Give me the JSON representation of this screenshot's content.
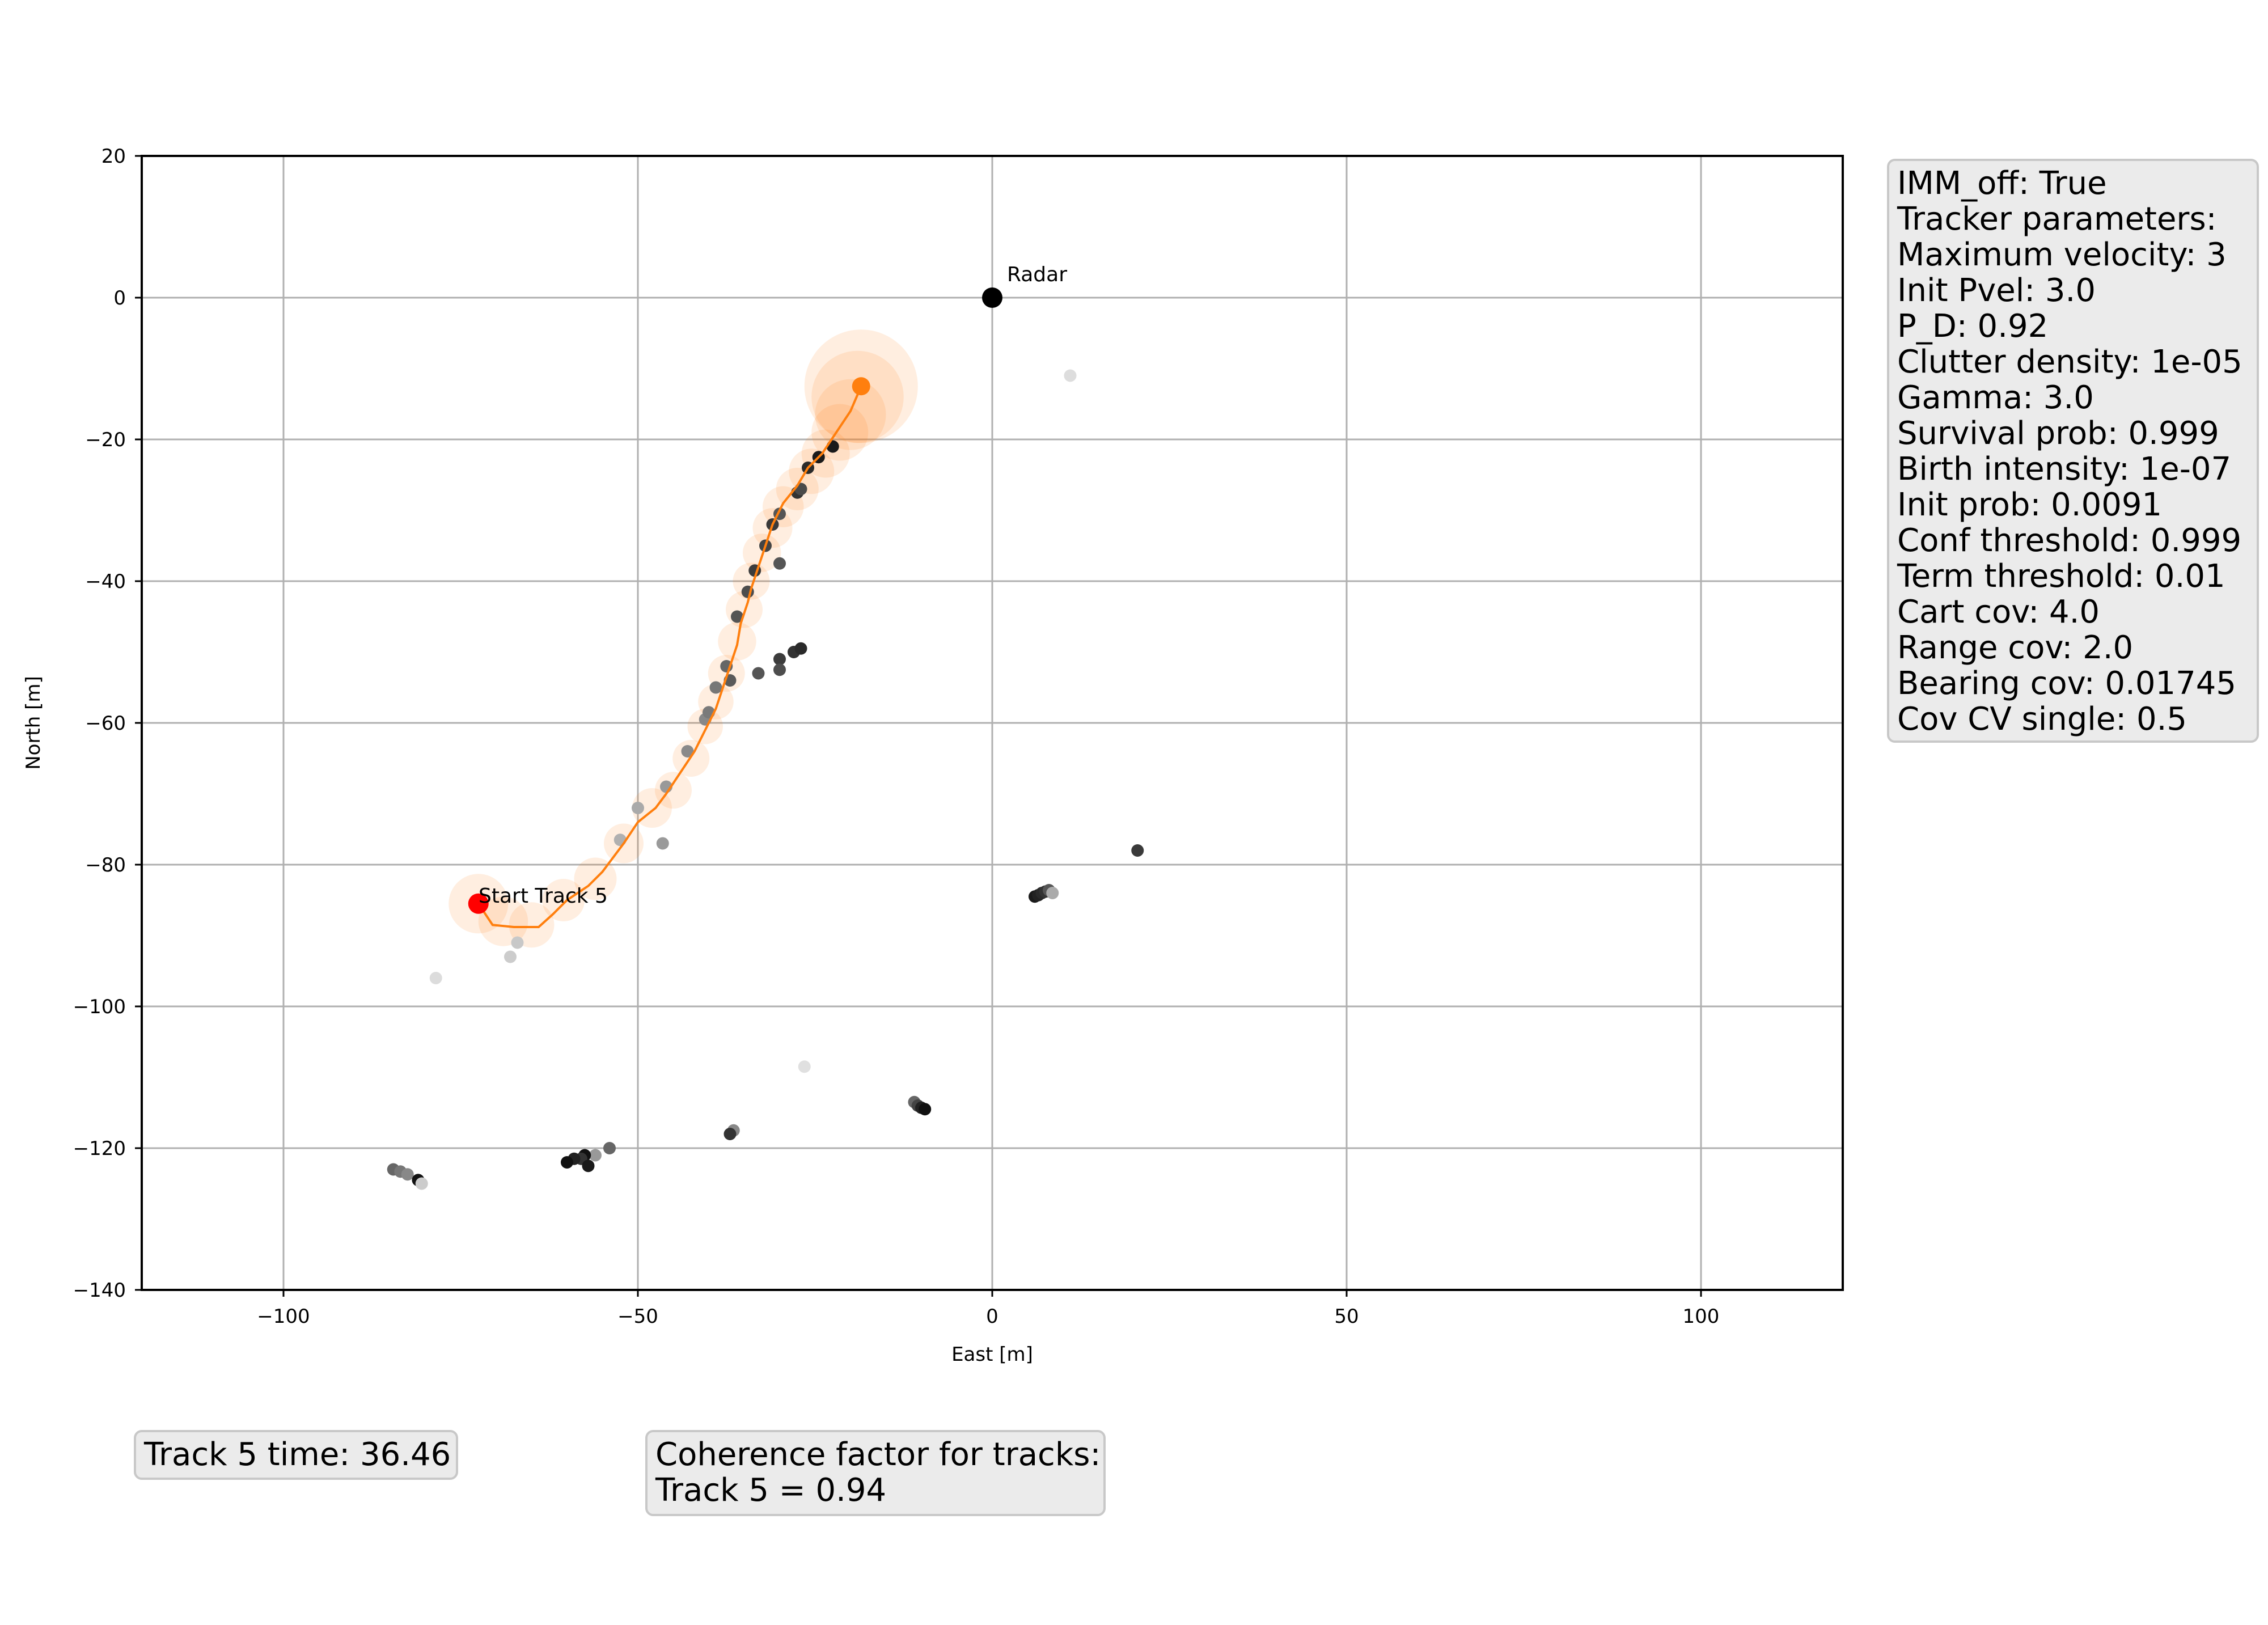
{
  "chart_data": {
    "type": "scatter",
    "xlabel": "East [m]",
    "ylabel": "North [m]",
    "xlim": [
      -120,
      120
    ],
    "ylim": [
      -140,
      20
    ],
    "xticks": [
      -100,
      -50,
      0,
      50,
      100
    ],
    "yticks": [
      20,
      0,
      -20,
      -40,
      -60,
      -80,
      -100,
      -120,
      -140
    ],
    "xtick_labels": [
      "−100",
      "−50",
      "0",
      "50",
      "100"
    ],
    "ytick_labels": [
      "20",
      "0",
      "−20",
      "−40",
      "−60",
      "−80",
      "−100",
      "−120",
      "−140"
    ],
    "grid": true,
    "radar": {
      "x": 0,
      "y": 0,
      "label": "Radar",
      "color": "#000000"
    },
    "track_start": {
      "x": -72.5,
      "y": -85.5,
      "label": "Start Track 5",
      "color": "#ff0000"
    },
    "track_end": {
      "x": -18.5,
      "y": -12.5,
      "color": "#ff7f0e"
    },
    "track_color": "#ff7f0e",
    "track": [
      [
        -72.5,
        -85.5
      ],
      [
        -70.5,
        -88.5
      ],
      [
        -67.5,
        -88.8
      ],
      [
        -64,
        -88.8
      ],
      [
        -62,
        -87
      ],
      [
        -60,
        -85
      ],
      [
        -57,
        -83
      ],
      [
        -55,
        -81
      ],
      [
        -52,
        -77
      ],
      [
        -50,
        -74
      ],
      [
        -47.5,
        -72
      ],
      [
        -46,
        -70
      ],
      [
        -44,
        -67
      ],
      [
        -42,
        -64
      ],
      [
        -41,
        -62
      ],
      [
        -40,
        -60
      ],
      [
        -39,
        -58
      ],
      [
        -38,
        -55
      ],
      [
        -37,
        -52
      ],
      [
        -36,
        -49
      ],
      [
        -35.5,
        -46
      ],
      [
        -34.5,
        -43
      ],
      [
        -34,
        -41
      ],
      [
        -33,
        -38
      ],
      [
        -32,
        -35
      ],
      [
        -31,
        -32
      ],
      [
        -29.5,
        -29
      ],
      [
        -27.5,
        -26.5
      ],
      [
        -26,
        -24
      ],
      [
        -24,
        -22
      ],
      [
        -22,
        -19
      ],
      [
        -20,
        -16
      ],
      [
        -18.5,
        -12.5
      ]
    ],
    "covariance_ellipses": [
      {
        "x": -72.5,
        "y": -85.5,
        "r": 4.2
      },
      {
        "x": -69,
        "y": -88,
        "r": 3.5
      },
      {
        "x": -65,
        "y": -88.5,
        "r": 3.2
      },
      {
        "x": -60.5,
        "y": -85,
        "r": 3
      },
      {
        "x": -56,
        "y": -82,
        "r": 3
      },
      {
        "x": -52,
        "y": -77,
        "r": 2.8
      },
      {
        "x": -48,
        "y": -72,
        "r": 2.8
      },
      {
        "x": -45,
        "y": -69.5,
        "r": 2.6
      },
      {
        "x": -42.5,
        "y": -65,
        "r": 2.6
      },
      {
        "x": -40.5,
        "y": -60.5,
        "r": 2.5
      },
      {
        "x": -39,
        "y": -57,
        "r": 2.5
      },
      {
        "x": -37.5,
        "y": -53,
        "r": 2.6
      },
      {
        "x": -36,
        "y": -48.5,
        "r": 2.7
      },
      {
        "x": -35,
        "y": -44,
        "r": 2.6
      },
      {
        "x": -34,
        "y": -40,
        "r": 2.6
      },
      {
        "x": -32.5,
        "y": -36,
        "r": 2.7
      },
      {
        "x": -31,
        "y": -32.5,
        "r": 2.8
      },
      {
        "x": -29.5,
        "y": -29.5,
        "r": 2.9
      },
      {
        "x": -27.5,
        "y": -27,
        "r": 3
      },
      {
        "x": -25.5,
        "y": -24.5,
        "r": 3.2
      },
      {
        "x": -23.5,
        "y": -22,
        "r": 3.4
      },
      {
        "x": -21.5,
        "y": -19,
        "r": 4
      },
      {
        "x": -20,
        "y": -16.5,
        "r": 5
      },
      {
        "x": -19,
        "y": -14,
        "r": 6.5
      },
      {
        "x": -18.5,
        "y": -12.5,
        "r": 8
      }
    ],
    "measurements": [
      {
        "x": -24.5,
        "y": -22.5,
        "c": "#1a1a1a"
      },
      {
        "x": -26,
        "y": -24,
        "c": "#2a2a2a"
      },
      {
        "x": -22.5,
        "y": -21,
        "c": "#1a1a1a"
      },
      {
        "x": -27.5,
        "y": -27.5,
        "c": "#333333"
      },
      {
        "x": -27,
        "y": -27,
        "c": "#4a4a4a"
      },
      {
        "x": -30,
        "y": -30.5,
        "c": "#555555"
      },
      {
        "x": -31,
        "y": -32,
        "c": "#3a3a3a"
      },
      {
        "x": -32,
        "y": -35,
        "c": "#444444"
      },
      {
        "x": -30,
        "y": -37.5,
        "c": "#555555"
      },
      {
        "x": -33.5,
        "y": -38.5,
        "c": "#3c3c3c"
      },
      {
        "x": -34.5,
        "y": -41.5,
        "c": "#4d4d4d"
      },
      {
        "x": -36,
        "y": -45,
        "c": "#555555"
      },
      {
        "x": -28,
        "y": -50,
        "c": "#333333"
      },
      {
        "x": -27,
        "y": -49.5,
        "c": "#2a2a2a"
      },
      {
        "x": -30,
        "y": -51,
        "c": "#3c3c3c"
      },
      {
        "x": -30,
        "y": -52.5,
        "c": "#4d4d4d"
      },
      {
        "x": -33,
        "y": -53,
        "c": "#555555"
      },
      {
        "x": -37.5,
        "y": -52,
        "c": "#666666"
      },
      {
        "x": -37,
        "y": -54,
        "c": "#5a5a5a"
      },
      {
        "x": -39,
        "y": -55,
        "c": "#777777"
      },
      {
        "x": -40.5,
        "y": -59.5,
        "c": "#888888"
      },
      {
        "x": -40,
        "y": -58.5,
        "c": "#7a7a7a"
      },
      {
        "x": -43,
        "y": -64,
        "c": "#8a8a8a"
      },
      {
        "x": -46,
        "y": -69,
        "c": "#999999"
      },
      {
        "x": -50,
        "y": -72,
        "c": "#aaaaaa"
      },
      {
        "x": -46.5,
        "y": -77,
        "c": "#9a9a9a"
      },
      {
        "x": -52.5,
        "y": -76.5,
        "c": "#b0b0b0"
      },
      {
        "x": -67,
        "y": -91,
        "c": "#c8c8c8"
      },
      {
        "x": -68,
        "y": -93,
        "c": "#cccccc"
      },
      {
        "x": -78.5,
        "y": -96,
        "c": "#dcdcdc"
      },
      {
        "x": -26.5,
        "y": -108.5,
        "c": "#e0e0e0"
      },
      {
        "x": 11,
        "y": -11,
        "c": "#dddddd"
      },
      {
        "x": 20.5,
        "y": -78,
        "c": "#3a3a3a"
      },
      {
        "x": 6,
        "y": -84.5,
        "c": "#1a1a1a"
      },
      {
        "x": 6.5,
        "y": -84.3,
        "c": "#222222"
      },
      {
        "x": 7,
        "y": -84,
        "c": "#2a2a2a"
      },
      {
        "x": 7.5,
        "y": -83.8,
        "c": "#333333"
      },
      {
        "x": 8,
        "y": -83.6,
        "c": "#555555"
      },
      {
        "x": 8.5,
        "y": -84,
        "c": "#aaaaaa"
      },
      {
        "x": -11,
        "y": -113.5,
        "c": "#666666"
      },
      {
        "x": -10.5,
        "y": -114,
        "c": "#444444"
      },
      {
        "x": -10,
        "y": -114.3,
        "c": "#222222"
      },
      {
        "x": -9.5,
        "y": -114.5,
        "c": "#111111"
      },
      {
        "x": -36.5,
        "y": -117.5,
        "c": "#888888"
      },
      {
        "x": -37,
        "y": -118,
        "c": "#333333"
      },
      {
        "x": -54,
        "y": -120,
        "c": "#666666"
      },
      {
        "x": -56,
        "y": -121,
        "c": "#999999"
      },
      {
        "x": -57.5,
        "y": -121,
        "c": "#111111"
      },
      {
        "x": -58,
        "y": -121.5,
        "c": "#333333"
      },
      {
        "x": -59,
        "y": -121.5,
        "c": "#222222"
      },
      {
        "x": -60,
        "y": -122,
        "c": "#111111"
      },
      {
        "x": -57,
        "y": -122.5,
        "c": "#1a1a1a"
      },
      {
        "x": -84.5,
        "y": -123,
        "c": "#666666"
      },
      {
        "x": -83.5,
        "y": -123.3,
        "c": "#777777"
      },
      {
        "x": -82.5,
        "y": -123.7,
        "c": "#888888"
      },
      {
        "x": -81,
        "y": -124.5,
        "c": "#111111"
      },
      {
        "x": -80.5,
        "y": -125,
        "c": "#cccccc"
      }
    ]
  },
  "params_box": {
    "lines": [
      "IMM_off: True",
      "Tracker parameters:",
      "Maximum velocity: 3",
      "Init Pvel: 3.0",
      "P_D: 0.92",
      "Clutter density: 1e-05",
      "Gamma: 3.0",
      "Survival prob: 0.999",
      "Birth intensity: 1e-07",
      "Init prob: 0.0091",
      "Conf threshold: 0.999",
      "Term threshold: 0.01",
      "Cart cov: 4.0",
      "Range cov: 2.0",
      "Bearing cov: 0.01745",
      "Cov CV single: 0.5"
    ]
  },
  "time_box": {
    "text": "Track 5 time: 36.46"
  },
  "coherence_box": {
    "line1": "Coherence factor for tracks:",
    "line2": "Track 5 = 0.94"
  }
}
